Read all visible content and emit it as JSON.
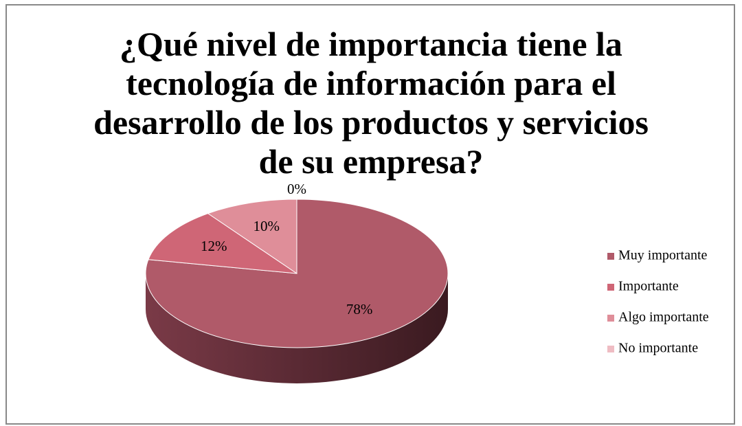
{
  "chart_data": {
    "type": "pie",
    "title": "¿Qué nivel de importancia tiene la tecnología de información para el desarrollo de los productos y servicios de su empresa?",
    "categories": [
      "Muy importante",
      "Importante",
      "Algo importante",
      "No importante"
    ],
    "values": [
      78,
      12,
      10,
      0
    ],
    "value_labels": [
      "78%",
      "12%",
      "10%",
      "0%"
    ],
    "colors": [
      "#b05a69",
      "#cf6676",
      "#df8e99",
      "#efbcc3"
    ],
    "legend": "right"
  }
}
